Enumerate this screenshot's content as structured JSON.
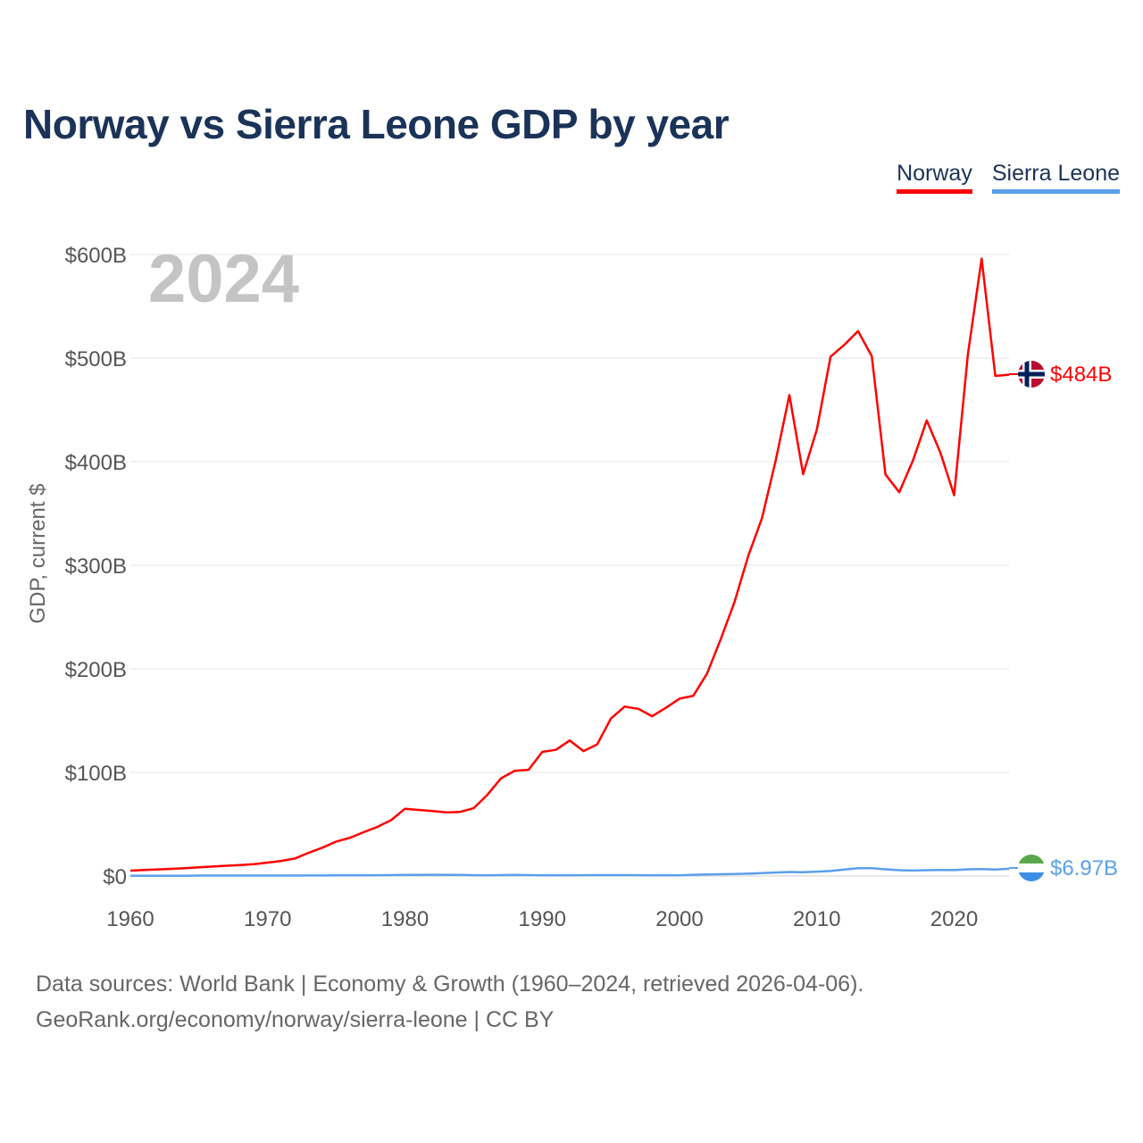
{
  "title": "Norway vs Sierra Leone GDP by year",
  "legend": [
    {
      "name": "Norway",
      "color": "#ff0000"
    },
    {
      "name": "Sierra Leone",
      "color": "#5aa0ea"
    }
  ],
  "year_watermark": "2024",
  "end_labels": {
    "norway": "$484B",
    "sierra_leone": "$6.97B"
  },
  "source": {
    "line1": "Data sources: World Bank | Economy & Growth (1960–2024, retrieved 2026-04-06).",
    "line2": "GeoRank.org/economy/norway/sierra-leone | CC BY"
  },
  "chart_data": {
    "type": "line",
    "title": "Norway vs Sierra Leone GDP by year",
    "xlabel": "",
    "ylabel": "GDP, current $",
    "xlim": [
      1960,
      2024
    ],
    "ylim": [
      0,
      600
    ],
    "unit": "billion current US$",
    "x_ticks": [
      1960,
      1970,
      1980,
      1990,
      2000,
      2010,
      2020
    ],
    "y_ticks": [
      {
        "value": 0,
        "label": "$0"
      },
      {
        "value": 100,
        "label": "$100B"
      },
      {
        "value": 200,
        "label": "$200B"
      },
      {
        "value": 300,
        "label": "$300B"
      },
      {
        "value": 400,
        "label": "$400B"
      },
      {
        "value": 500,
        "label": "$500B"
      },
      {
        "value": 600,
        "label": "$600B"
      }
    ],
    "grid": true,
    "legend_position": "top-right",
    "x": [
      1960,
      1961,
      1962,
      1963,
      1964,
      1965,
      1966,
      1967,
      1968,
      1969,
      1970,
      1971,
      1972,
      1973,
      1974,
      1975,
      1976,
      1977,
      1978,
      1979,
      1980,
      1981,
      1982,
      1983,
      1984,
      1985,
      1986,
      1987,
      1988,
      1989,
      1990,
      1991,
      1992,
      1993,
      1994,
      1995,
      1996,
      1997,
      1998,
      1999,
      2000,
      2001,
      2002,
      2003,
      2004,
      2005,
      2006,
      2007,
      2008,
      2009,
      2010,
      2011,
      2012,
      2013,
      2014,
      2015,
      2016,
      2017,
      2018,
      2019,
      2020,
      2021,
      2022,
      2023,
      2024
    ],
    "series": [
      {
        "name": "Norway",
        "color": "#ff0000",
        "values": [
          5.2,
          5.9,
          6.4,
          6.9,
          7.5,
          8.4,
          9.1,
          9.9,
          10.6,
          11.4,
          12.9,
          14.6,
          17.0,
          22.5,
          27.4,
          33.3,
          36.9,
          42.3,
          47.5,
          54.0,
          64.9,
          63.8,
          62.7,
          61.5,
          61.8,
          65.4,
          78.4,
          94.3,
          101.6,
          102.5,
          119.8,
          121.8,
          130.9,
          120.6,
          127.1,
          152.0,
          163.5,
          161.4,
          154.2,
          162.3,
          171.2,
          174.0,
          195.4,
          228.6,
          264.4,
          308.9,
          345.4,
          400.9,
          464.3,
          387.9,
          431.1,
          501.4,
          512.8,
          526.0,
          501.7,
          387.7,
          370.5,
          401.1,
          439.8,
          408.7,
          367.6,
          503.5,
          596.0,
          482.8,
          484.0
        ]
      },
      {
        "name": "Sierra Leone",
        "color": "#5aa0ea",
        "values": [
          0.3,
          0.3,
          0.3,
          0.3,
          0.3,
          0.4,
          0.4,
          0.4,
          0.4,
          0.4,
          0.4,
          0.4,
          0.4,
          0.5,
          0.5,
          0.6,
          0.6,
          0.6,
          0.8,
          0.9,
          1.1,
          1.1,
          1.2,
          1.0,
          1.0,
          0.8,
          0.7,
          0.9,
          1.0,
          0.9,
          0.6,
          0.8,
          0.6,
          0.8,
          0.9,
          0.9,
          0.9,
          0.8,
          0.6,
          0.6,
          0.6,
          1.2,
          1.5,
          1.7,
          2.0,
          2.2,
          2.8,
          3.4,
          3.9,
          3.7,
          4.2,
          4.8,
          6.2,
          7.6,
          7.6,
          6.5,
          5.6,
          5.3,
          5.6,
          5.8,
          5.7,
          6.5,
          6.7,
          6.2,
          6.97
        ]
      }
    ]
  }
}
